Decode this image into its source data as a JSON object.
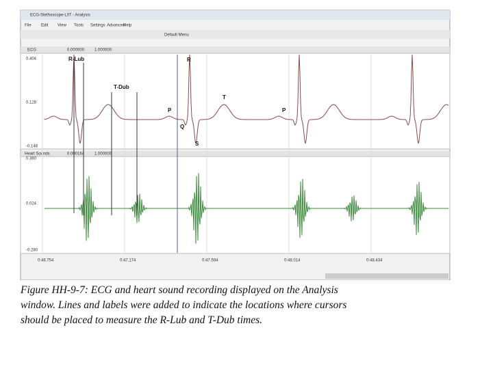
{
  "window": {
    "title": "ECG-Stethoscope-L07 - Analysis",
    "menu": [
      "File",
      "Edit",
      "View",
      "Tools",
      "Settings",
      "Advanced",
      "Help"
    ],
    "toolbar_label": "Default Menu",
    "channels": [
      {
        "name": "ECG",
        "readouts": [
          "0.000000",
          "1.000000"
        ],
        "ticks": [
          "0.404",
          "0.128",
          "-0.148"
        ]
      },
      {
        "name": "Heart Sounds",
        "readouts": [
          "0.000164",
          "1.000000"
        ],
        "ticks": [
          "0.360",
          "0.024",
          "-0.280"
        ]
      }
    ],
    "time_ticks": [
      "0:46.754",
      "0:47.174",
      "0:47.594",
      "0:48.014",
      "0:48.434"
    ],
    "annotations": [
      "R-Lub",
      "T-Dub",
      "R",
      "P",
      "Q",
      "S",
      "T",
      "P"
    ]
  },
  "caption": {
    "lines": [
      "Figure HH-9-7: ECG and heart sound recording displayed on the Analysis",
      "window. Lines and labels were added to indicate the locations where cursors",
      "should be placed to measure the R-Lub and T-Dub times."
    ]
  }
}
